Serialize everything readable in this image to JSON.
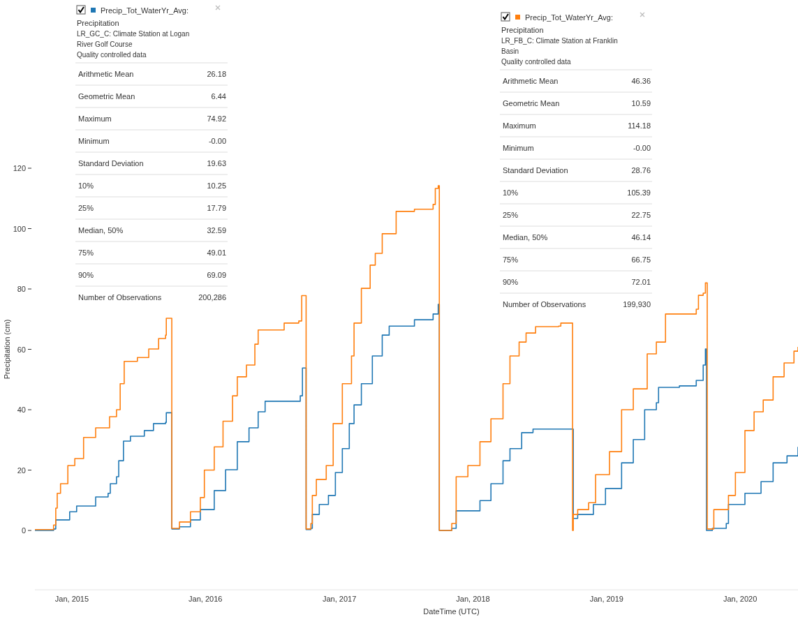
{
  "chart_data": {
    "type": "step",
    "xlabel": "DateTime (UTC)",
    "ylabel": "Precipitation (cm)",
    "xlim": [
      "2014-09-22",
      "2020-06-07"
    ],
    "ylim": [
      0,
      120
    ],
    "xticks": [
      {
        "value": "2015-01-01",
        "label": "Jan, 2015"
      },
      {
        "value": "2016-01-01",
        "label": "Jan, 2016"
      },
      {
        "value": "2017-01-01",
        "label": "Jan, 2017"
      },
      {
        "value": "2018-01-01",
        "label": "Jan, 2018"
      },
      {
        "value": "2019-01-01",
        "label": "Jan, 2019"
      },
      {
        "value": "2020-01-01",
        "label": "Jan, 2020"
      }
    ],
    "yticks": [
      0,
      20,
      40,
      60,
      80,
      100,
      120
    ],
    "legend": "top",
    "grid": false,
    "series": [
      {
        "name": "Precip_Tot_WaterYr_Avg: Precipitation",
        "color": "#1f77b4",
        "x": [
          "2014-09-22",
          "2014-11-12",
          "2014-11-18",
          "2014-12-26",
          "2015-01-14",
          "2015-03-07",
          "2015-04-10",
          "2015-04-16",
          "2015-05-03",
          "2015-05-09",
          "2015-05-22",
          "2015-06-10",
          "2015-07-18",
          "2015-08-12",
          "2015-09-14",
          "2015-09-16",
          "2015-10-01",
          "2015-10-22",
          "2015-11-21",
          "2015-12-18",
          "2016-01-25",
          "2016-02-25",
          "2016-03-28",
          "2016-04-29",
          "2016-05-24",
          "2016-06-12",
          "2016-09-10",
          "2016-09-16",
          "2016-09-22",
          "2016-10-02",
          "2016-10-15",
          "2016-10-19",
          "2016-11-07",
          "2016-12-02",
          "2016-12-21",
          "2017-01-09",
          "2017-01-28",
          "2017-02-10",
          "2017-03-02",
          "2017-04-01",
          "2017-04-28",
          "2017-05-17",
          "2017-07-25",
          "2017-09-14",
          "2017-09-28",
          "2017-10-01",
          "2017-11-04",
          "2017-11-16",
          "2018-01-20",
          "2018-02-19",
          "2018-03-24",
          "2018-04-12",
          "2018-05-14",
          "2018-06-14",
          "2018-09-30",
          "2018-10-02",
          "2018-10-14",
          "2018-11-26",
          "2018-12-29",
          "2019-02-11",
          "2019-03-15",
          "2019-04-15",
          "2019-05-17",
          "2019-05-23",
          "2019-07-19",
          "2019-09-03",
          "2019-09-22",
          "2019-09-28",
          "2019-10-01",
          "2019-10-17",
          "2019-11-24",
          "2019-11-30",
          "2020-01-14",
          "2020-02-27",
          "2020-03-31",
          "2020-05-08",
          "2020-06-07"
        ],
        "values": [
          0,
          0.5,
          3.5,
          6.2,
          8.1,
          11.1,
          12.3,
          15.5,
          17.8,
          23.1,
          29.6,
          31.2,
          33.1,
          35.4,
          35.8,
          39,
          0.5,
          1.2,
          3.5,
          6.9,
          13.2,
          20.1,
          29.4,
          34,
          39.3,
          42.8,
          42.8,
          44.6,
          53.8,
          0.3,
          0.7,
          5.3,
          8.6,
          11.6,
          19.2,
          27.1,
          35.4,
          41.6,
          48.6,
          57.8,
          64.7,
          67.7,
          69.8,
          71.7,
          74.9,
          0,
          0.7,
          6.5,
          9.9,
          15.5,
          23.1,
          27.1,
          32.4,
          33.6,
          33.6,
          4,
          5.3,
          8.6,
          13.9,
          22.4,
          30.1,
          40,
          42.3,
          47.4,
          47.9,
          49.7,
          54.8,
          60.1,
          0,
          0.7,
          2.3,
          8.6,
          12.3,
          16.2,
          22.4,
          24.7,
          27.7
        ]
      },
      {
        "name": "Precip_Tot_WaterYr_Avg: Precipitation",
        "color": "#ff7f0e",
        "x": [
          "2014-09-22",
          "2014-11-12",
          "2014-11-18",
          "2014-11-22",
          "2014-12-01",
          "2014-12-21",
          "2015-01-09",
          "2015-02-02",
          "2015-03-07",
          "2015-04-14",
          "2015-05-03",
          "2015-05-13",
          "2015-05-24",
          "2015-06-29",
          "2015-07-30",
          "2015-08-26",
          "2015-09-14",
          "2015-09-16",
          "2015-10-01",
          "2015-10-22",
          "2015-11-21",
          "2015-12-18",
          "2015-12-29",
          "2016-01-25",
          "2016-02-18",
          "2016-03-15",
          "2016-03-28",
          "2016-04-22",
          "2016-05-15",
          "2016-05-24",
          "2016-08-03",
          "2016-09-12",
          "2016-09-20",
          "2016-10-02",
          "2016-10-15",
          "2016-10-19",
          "2016-10-30",
          "2016-11-26",
          "2016-12-15",
          "2017-01-09",
          "2017-02-03",
          "2017-02-10",
          "2017-03-02",
          "2017-03-26",
          "2017-04-09",
          "2017-04-28",
          "2017-06-05",
          "2017-07-25",
          "2017-09-14",
          "2017-09-20",
          "2017-09-28",
          "2017-10-01",
          "2017-11-04",
          "2017-11-16",
          "2017-12-18",
          "2018-01-20",
          "2018-02-19",
          "2018-03-24",
          "2018-04-12",
          "2018-05-07",
          "2018-05-26",
          "2018-06-21",
          "2018-08-23",
          "2018-08-29",
          "2018-09-30",
          "2018-10-02",
          "2018-10-14",
          "2018-11-13",
          "2018-12-02",
          "2019-01-09",
          "2019-02-11",
          "2019-03-15",
          "2019-04-22",
          "2019-05-17",
          "2019-06-11",
          "2019-09-03",
          "2019-09-09",
          "2019-09-22",
          "2019-09-28",
          "2019-10-03",
          "2019-10-21",
          "2019-11-30",
          "2019-12-19",
          "2020-01-14",
          "2020-02-08",
          "2020-03-04",
          "2020-03-31",
          "2020-04-30",
          "2020-05-27",
          "2020-06-07"
        ],
        "values": [
          0.3,
          1.8,
          7.4,
          12.3,
          15.5,
          21.5,
          23.8,
          30.8,
          34,
          37.7,
          40,
          48.6,
          56,
          57.3,
          60.1,
          63.6,
          64.7,
          70.3,
          0.7,
          2.8,
          6.2,
          10.9,
          20,
          27.7,
          36.2,
          44.6,
          50.9,
          54.8,
          61.7,
          66.4,
          68.7,
          69.4,
          77.8,
          0.5,
          2.3,
          11.6,
          16.9,
          21.5,
          35.4,
          48.6,
          57.8,
          68.7,
          80.2,
          87.9,
          91.8,
          98.3,
          105.7,
          106.4,
          108,
          113.3,
          114.2,
          0,
          2.3,
          17.8,
          21.5,
          29.4,
          37,
          48.6,
          57.8,
          62.4,
          65.4,
          67.5,
          67.7,
          68.7,
          0,
          5.3,
          6.9,
          9.2,
          18.5,
          26.1,
          40,
          46.9,
          58.5,
          62.4,
          71.7,
          73.3,
          77.9,
          78.6,
          82,
          0.5,
          6.9,
          11.6,
          19.2,
          33.1,
          39.3,
          43.2,
          50.9,
          55.5,
          59.4,
          60.8
        ]
      }
    ],
    "annotations": [
      "LR_GC_C: Climate Station at Logan River Golf Course",
      "Quality controlled data",
      "Arithmetic Mean",
      "26.18",
      "Geometric Mean",
      "6.44",
      "Maximum",
      "74.92",
      "Minimum",
      "-0.00",
      "Standard Deviation",
      "19.63",
      "10%",
      "10.25",
      "25%",
      "17.79",
      "Median, 50%",
      "32.59",
      "75%",
      "49.01",
      "90%",
      "69.09",
      "Number of Observations",
      "200,286",
      "LR_FB_C: Climate Station at Franklin Basin",
      "Quality controlled data",
      "Arithmetic Mean",
      "46.36",
      "Geometric Mean",
      "10.59",
      "Maximum",
      "114.18",
      "Minimum",
      "-0.00",
      "Standard Deviation",
      "28.76",
      "10%",
      "105.39",
      "25%",
      "22.75",
      "Median, 50%",
      "46.14",
      "75%",
      "66.75",
      "90%",
      "72.01",
      "Number of Observations",
      "199,930"
    ]
  }
}
